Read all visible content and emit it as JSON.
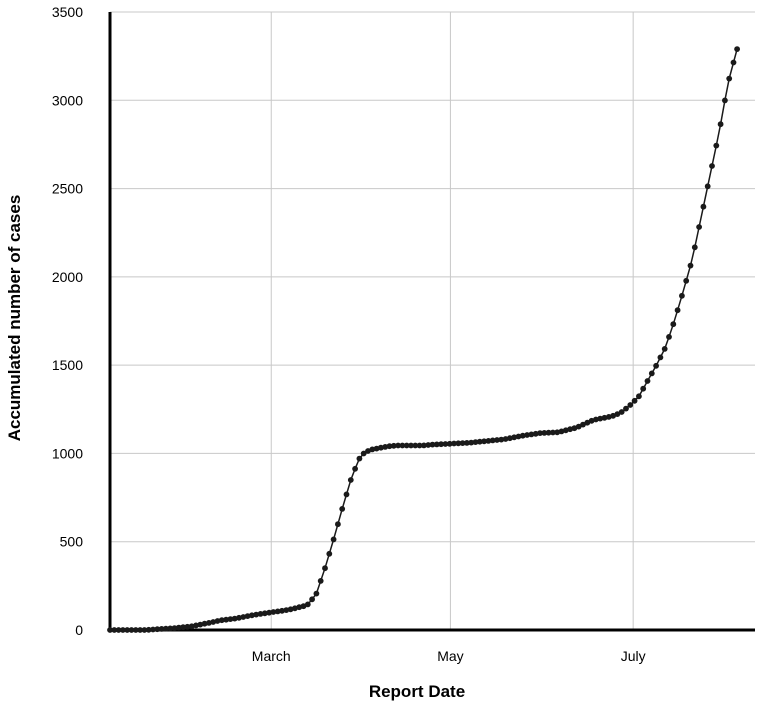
{
  "chart_data": {
    "type": "line",
    "title": "",
    "xlabel": "Report Date",
    "ylabel": "Accumulated number of cases",
    "ylim": [
      0,
      3500
    ],
    "yticks": [
      0,
      500,
      1000,
      1500,
      2000,
      2500,
      3000,
      3500
    ],
    "xtick_labels": [
      {
        "label": "March",
        "day": 90
      },
      {
        "label": "May",
        "day": 190
      },
      {
        "label": "July",
        "day": 292
      }
    ],
    "xlim": [
      0,
      360
    ],
    "grid": true,
    "legend": "none",
    "marker": "circle",
    "colors": {
      "series": "#1a1a1a",
      "grid": "#c8c8c8",
      "axis": "#000000"
    },
    "x_unit": "days",
    "series": [
      {
        "x": [
          0,
          10,
          20,
          27,
          35,
          45,
          55,
          62,
          70,
          80,
          90,
          100,
          110,
          115,
          120,
          125,
          130,
          135,
          140,
          145,
          150,
          155,
          160,
          165,
          170,
          175,
          180,
          190,
          200,
          210,
          220,
          230,
          240,
          250,
          260,
          270,
          280,
          285,
          290,
          295,
          300,
          305,
          310,
          315,
          320,
          325,
          330,
          335,
          340,
          345,
          350
        ],
        "y": [
          0,
          0,
          0,
          5,
          10,
          20,
          40,
          55,
          65,
          85,
          100,
          115,
          140,
          200,
          350,
          520,
          700,
          870,
          990,
          1020,
          1030,
          1040,
          1045,
          1045,
          1045,
          1045,
          1050,
          1055,
          1060,
          1070,
          1080,
          1100,
          1115,
          1120,
          1145,
          1190,
          1210,
          1230,
          1270,
          1320,
          1410,
          1500,
          1600,
          1750,
          1920,
          2100,
          2340,
          2580,
          2820,
          3100,
          3290
        ]
      }
    ]
  }
}
